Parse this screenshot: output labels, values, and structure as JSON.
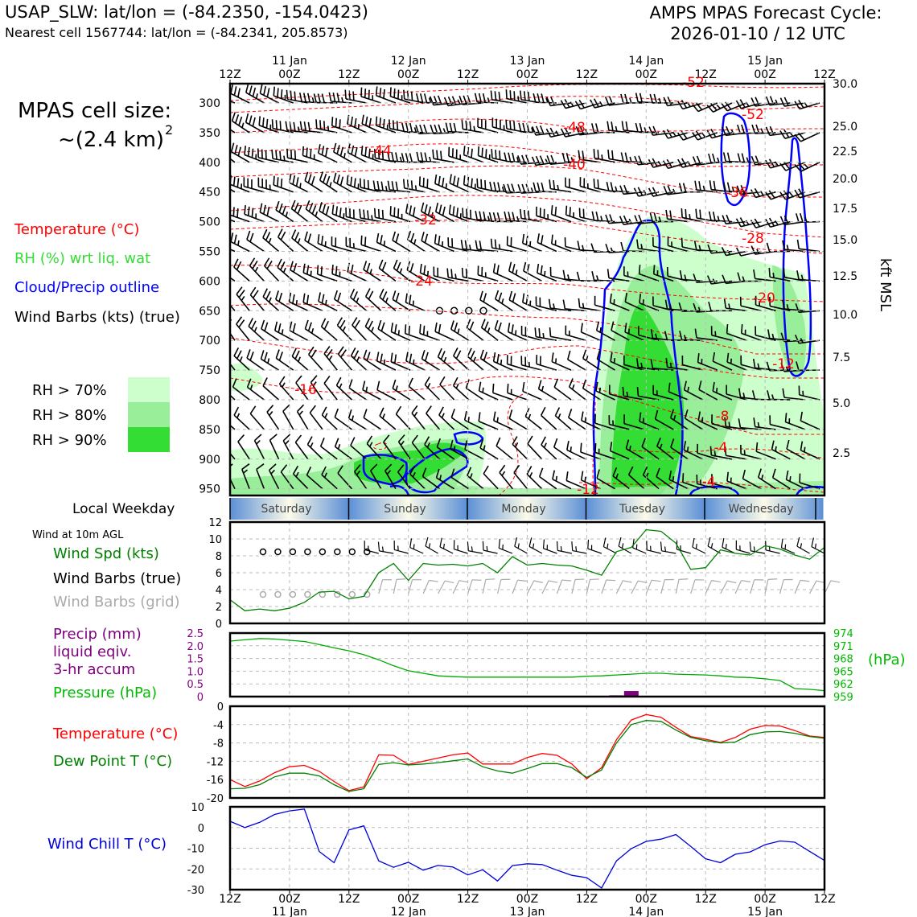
{
  "header": {
    "site_line": "USAP_SLW: lat/lon = (-84.2350, -154.0423)",
    "cell_line": "Nearest cell 1567744: lat/lon = (-84.2341, 205.8573)",
    "cycle_title": "AMPS MPAS Forecast Cycle:",
    "cycle_date": "2026-01-10 / 12 UTC"
  },
  "left_panel": {
    "cell_size_title": "MPAS cell size:",
    "cell_size_value": "~(2.4 km)",
    "cell_size_exp": "2",
    "legend_temperature": "Temperature (°C)",
    "legend_rh": "RH (%) wrt liq. wat",
    "legend_cloud": "Cloud/Precip outline",
    "legend_wind": "Wind Barbs (kts) (true)",
    "rh_keys": [
      {
        "label": "RH > 70%",
        "color": "#ccffcc"
      },
      {
        "label": "RH > 80%",
        "color": "#99ee99"
      },
      {
        "label": "RH > 90%",
        "color": "#33dd33"
      }
    ],
    "weekday_label": "Local Weekday",
    "wind10_label": "Wind at 10m AGL",
    "wind_spd_label": "Wind Spd (kts)",
    "wind_barbs_true_label": "Wind Barbs (true)",
    "wind_barbs_grid_label": "Wind Barbs (grid)",
    "precip_label_1": "Precip (mm)",
    "precip_label_2": "liquid eqiv.",
    "precip_label_3": "3-hr accum",
    "pressure_label": "Pressure (hPa)",
    "temp_label": "Temperature (°C)",
    "dew_label": "Dew Point T (°C)",
    "windchill_label": "Wind Chill T (°C)"
  },
  "colors": {
    "temperature": "#ff0000",
    "rh": "#33cc33",
    "cloud": "#0000ff",
    "pressure": "#00aa00",
    "precip": "#7f007f",
    "dew": "#008000",
    "windchill": "#0000dd",
    "grid_barbs": "#aaaaaa"
  },
  "time_axis": {
    "ticks_top": [
      "12Z",
      "00Z",
      "12Z",
      "00Z",
      "12Z",
      "00Z",
      "12Z",
      "00Z",
      "12Z",
      "00Z",
      "12Z"
    ],
    "dates": [
      "11 Jan",
      "12 Jan",
      "13 Jan",
      "14 Jan",
      "15 Jan"
    ],
    "weekdays": [
      "Saturday",
      "Sunday",
      "Monday",
      "Tuesday",
      "Wednesday"
    ]
  },
  "chart_data": [
    {
      "type": "heatmap",
      "panel": "upper-air time-height cross section",
      "y_left_ticks": [
        "300",
        "350",
        "400",
        "450",
        "500",
        "550",
        "600",
        "650",
        "700",
        "750",
        "800",
        "850",
        "900",
        "950"
      ],
      "y_right_ticks": [
        "30.0",
        "25.0",
        "22.5",
        "20.0",
        "17.5",
        "15.0",
        "12.5",
        "10.0",
        "7.5",
        "5.0",
        "2.5"
      ],
      "y_right_label": "kft MSL",
      "temperature_contour_labels": [
        "-52",
        "-52",
        "-48",
        "-44",
        "-40",
        "-36",
        "-32",
        "-28",
        "-24",
        "-20",
        "-16",
        "-12",
        "-12",
        "-8",
        "-4",
        "-4"
      ]
    },
    {
      "type": "line",
      "panel": "10 m wind speed",
      "ylim": [
        0,
        12
      ],
      "y_ticks": [
        "12",
        "10",
        "8",
        "6",
        "4",
        "2",
        "0"
      ],
      "series": [
        {
          "name": "Wind Spd (kts)",
          "x_hours": [
            0,
            3,
            6,
            9,
            12,
            15,
            18,
            21,
            24,
            27,
            30,
            33,
            36,
            39,
            42,
            45,
            48,
            51,
            54,
            57,
            60,
            63,
            66,
            69,
            72,
            75,
            78,
            81,
            84,
            87,
            90,
            93,
            96,
            99,
            102,
            105,
            108,
            111,
            114,
            117,
            120
          ],
          "values": [
            2.8,
            1.5,
            1.7,
            1.5,
            1.8,
            2.5,
            3.7,
            3.8,
            2.9,
            3.2,
            6.0,
            7.1,
            5.1,
            7.1,
            6.9,
            7.0,
            6.8,
            7.1,
            6.0,
            7.9,
            6.9,
            7.1,
            6.9,
            6.8,
            6.3,
            5.7,
            8.5,
            9.0,
            11.1,
            10.9,
            9.5,
            6.4,
            6.6,
            8.7,
            8.3,
            8.1,
            9.2,
            8.8,
            8.1,
            7.6,
            9.0
          ]
        }
      ]
    },
    {
      "type": "bar",
      "panel": "3-hr precipitation and surface pressure",
      "ylim": [
        0,
        2.5
      ],
      "y_ticks": [
        "2.5",
        "2.0",
        "1.5",
        "1.0",
        "0.5",
        "0"
      ],
      "y_right_ticks": [
        "974",
        "971",
        "968",
        "965",
        "962",
        "959"
      ],
      "y_right_label": "(hPa)",
      "precip": {
        "x_hours": [
          78,
          81
        ],
        "values": [
          0.05,
          0.22
        ]
      },
      "pressure": {
        "name": "Pressure (hPa)",
        "ylim": [
          959,
          974
        ],
        "x_hours": [
          0,
          3,
          6,
          9,
          12,
          15,
          18,
          21,
          24,
          27,
          30,
          33,
          36,
          39,
          42,
          45,
          48,
          51,
          54,
          57,
          60,
          63,
          66,
          69,
          72,
          75,
          78,
          81,
          84,
          87,
          90,
          93,
          96,
          99,
          102,
          105,
          108,
          111,
          114,
          117,
          120
        ],
        "values": [
          972.1,
          972.4,
          972.7,
          972.6,
          972.3,
          972.0,
          971.3,
          970.5,
          969.8,
          968.9,
          967.7,
          966.3,
          965.1,
          964.5,
          963.9,
          963.7,
          963.6,
          963.6,
          963.6,
          963.6,
          963.6,
          963.6,
          963.6,
          963.6,
          963.8,
          963.9,
          964.1,
          964.3,
          964.5,
          964.5,
          964.3,
          964.2,
          964.1,
          963.9,
          963.6,
          963.5,
          963.2,
          962.8,
          960.9,
          960.7,
          960.4
        ]
      }
    },
    {
      "type": "line",
      "panel": "temperature and dew point",
      "ylim": [
        -20,
        0
      ],
      "y_ticks": [
        "0",
        "-4",
        "-8",
        "-12",
        "-16",
        "-20"
      ],
      "series": [
        {
          "name": "Temperature (°C)",
          "x_hours": [
            0,
            3,
            6,
            9,
            12,
            15,
            18,
            21,
            24,
            27,
            30,
            33,
            36,
            39,
            42,
            45,
            48,
            51,
            54,
            57,
            60,
            63,
            66,
            69,
            72,
            75,
            78,
            81,
            84,
            87,
            90,
            93,
            96,
            99,
            102,
            105,
            108,
            111,
            114,
            117,
            120
          ],
          "values": [
            -16.0,
            -17.5,
            -16.3,
            -14.5,
            -13.2,
            -12.9,
            -14.2,
            -16.4,
            -18.4,
            -17.6,
            -10.6,
            -10.7,
            -12.7,
            -12.0,
            -11.3,
            -10.6,
            -10.2,
            -12.6,
            -12.6,
            -12.6,
            -11.2,
            -10.3,
            -10.7,
            -12.6,
            -15.8,
            -13.4,
            -7.3,
            -3.0,
            -1.8,
            -2.4,
            -4.6,
            -6.6,
            -7.2,
            -7.9,
            -6.8,
            -5.0,
            -4.2,
            -4.3,
            -5.3,
            -6.5,
            -6.8
          ]
        },
        {
          "name": "Dew Point T (°C)",
          "x_hours": [
            0,
            3,
            6,
            9,
            12,
            15,
            18,
            21,
            24,
            27,
            30,
            33,
            36,
            39,
            42,
            45,
            48,
            51,
            54,
            57,
            60,
            63,
            66,
            69,
            72,
            75,
            78,
            81,
            84,
            87,
            90,
            93,
            96,
            99,
            102,
            105,
            108,
            111,
            114,
            117,
            120
          ],
          "values": [
            -18.0,
            -17.9,
            -17.1,
            -15.4,
            -14.6,
            -14.6,
            -15.2,
            -17.1,
            -18.6,
            -18.0,
            -12.7,
            -12.3,
            -12.8,
            -12.6,
            -12.3,
            -11.9,
            -11.5,
            -13.2,
            -14.1,
            -14.6,
            -13.6,
            -12.5,
            -12.5,
            -13.4,
            -15.5,
            -13.9,
            -8.0,
            -4.0,
            -3.1,
            -3.3,
            -5.2,
            -6.8,
            -7.5,
            -8.0,
            -7.8,
            -6.2,
            -5.6,
            -5.5,
            -5.9,
            -6.6,
            -7.0
          ]
        }
      ]
    },
    {
      "type": "line",
      "panel": "wind chill",
      "ylim": [
        -30,
        10
      ],
      "y_ticks": [
        "10",
        "0",
        "-10",
        "-20",
        "-30"
      ],
      "series": [
        {
          "name": "Wind Chill T (°C)",
          "x_hours": [
            0,
            3,
            6,
            9,
            12,
            15,
            18,
            21,
            24,
            27,
            30,
            33,
            36,
            39,
            42,
            45,
            48,
            51,
            54,
            57,
            60,
            63,
            66,
            69,
            72,
            75,
            78,
            81,
            84,
            87,
            90,
            93,
            96,
            99,
            102,
            105,
            108,
            111,
            114,
            117,
            120
          ],
          "values": [
            3.0,
            0.0,
            2.5,
            6.3,
            8.0,
            8.9,
            -11.6,
            -17.0,
            -1.2,
            0.8,
            -16.1,
            -19.2,
            -16.8,
            -20.6,
            -18.3,
            -19.1,
            -22.9,
            -20.4,
            -25.8,
            -18.4,
            -17.5,
            -17.9,
            -20.6,
            -23.1,
            -24.2,
            -29.2,
            -16.1,
            -10.2,
            -6.7,
            -5.6,
            -3.4,
            -9.1,
            -15.1,
            -17.0,
            -12.9,
            -11.8,
            -8.3,
            -6.5,
            -7.1,
            -11.5,
            -15.9
          ]
        }
      ]
    }
  ]
}
